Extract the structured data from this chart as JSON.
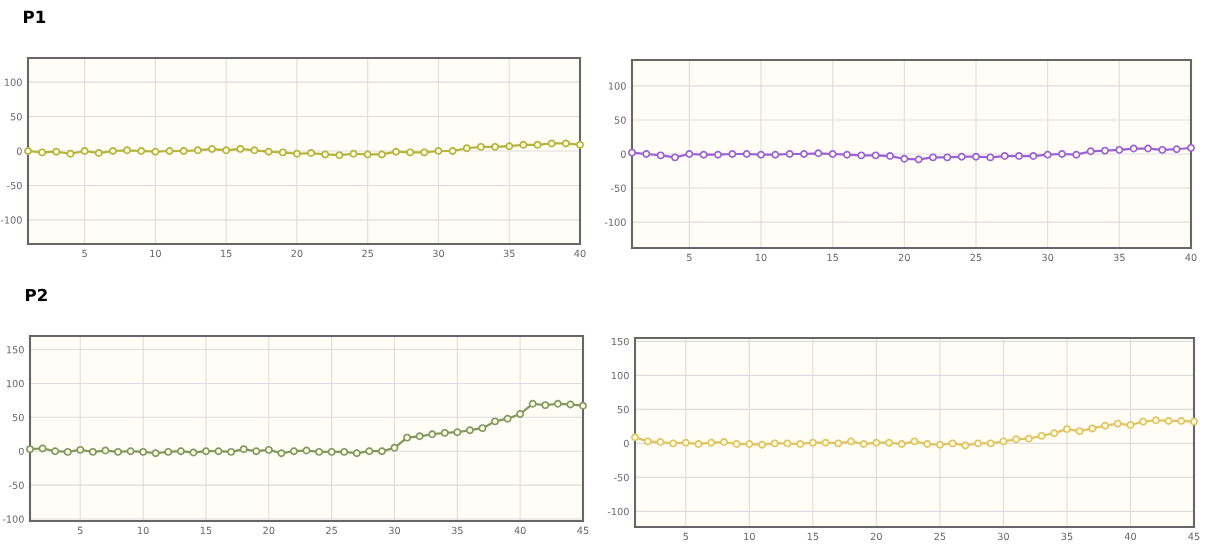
{
  "chart_data": [
    {
      "type": "line",
      "annotations": [
        "P1"
      ],
      "x": [
        1,
        2,
        3,
        4,
        5,
        6,
        7,
        8,
        9,
        10,
        11,
        12,
        13,
        14,
        15,
        16,
        17,
        18,
        19,
        20,
        21,
        22,
        23,
        24,
        25,
        26,
        27,
        28,
        29,
        30,
        31,
        32,
        33,
        34,
        35,
        36,
        37,
        38,
        39,
        40
      ],
      "series": [
        {
          "color": "#b5b33a",
          "values": [
            0,
            -2,
            -1,
            -4,
            0,
            -3,
            0,
            1,
            0,
            -1,
            0,
            0,
            1,
            3,
            1,
            3,
            1,
            -1,
            -2,
            -4,
            -3,
            -5,
            -6,
            -4,
            -5,
            -5,
            -1,
            -2,
            -2,
            0,
            0,
            4,
            6,
            6,
            7,
            9,
            9,
            11,
            11,
            9
          ]
        }
      ],
      "xlim": [
        1,
        40
      ],
      "xticks": [
        5,
        10,
        15,
        20,
        25,
        30,
        35,
        40
      ],
      "ylim": [
        -135,
        135
      ],
      "yticks": [
        -100,
        -50,
        0,
        50,
        100
      ],
      "grid": true,
      "marker": "circle",
      "line_style": "solid"
    },
    {
      "type": "line",
      "x": [
        1,
        2,
        3,
        4,
        5,
        6,
        7,
        8,
        9,
        10,
        11,
        12,
        13,
        14,
        15,
        16,
        17,
        18,
        19,
        20,
        21,
        22,
        23,
        24,
        25,
        26,
        27,
        28,
        29,
        30,
        31,
        32,
        33,
        34,
        35,
        36,
        37,
        38,
        39,
        40
      ],
      "series": [
        {
          "color": "#9a60d6",
          "values": [
            2,
            0,
            -2,
            -5,
            0,
            -1,
            -1,
            0,
            0,
            -1,
            -1,
            0,
            0,
            1,
            0,
            -1,
            -2,
            -2,
            -3,
            -7,
            -8,
            -5,
            -5,
            -4,
            -4,
            -5,
            -3,
            -3,
            -3,
            -1,
            0,
            -1,
            4,
            5,
            6,
            8,
            8,
            6,
            7,
            9
          ]
        }
      ],
      "xlim": [
        1,
        40
      ],
      "xticks": [
        5,
        10,
        15,
        20,
        25,
        30,
        35,
        40
      ],
      "ylim": [
        -138,
        138
      ],
      "yticks": [
        -100,
        -50,
        0,
        50,
        100
      ],
      "grid": true,
      "marker": "circle",
      "line_style": "solid"
    },
    {
      "type": "line",
      "annotations": [
        "P2"
      ],
      "x": [
        1,
        2,
        3,
        4,
        5,
        6,
        7,
        8,
        9,
        10,
        11,
        12,
        13,
        14,
        15,
        16,
        17,
        18,
        19,
        20,
        21,
        22,
        23,
        24,
        25,
        26,
        27,
        28,
        29,
        30,
        31,
        32,
        33,
        34,
        35,
        36,
        37,
        38,
        39,
        40,
        41,
        42,
        43,
        44,
        45
      ],
      "series": [
        {
          "color": "#7f9860",
          "values": [
            3,
            4,
            0,
            -1,
            2,
            -1,
            1,
            -1,
            0,
            -1,
            -3,
            -1,
            0,
            -2,
            0,
            0,
            -1,
            3,
            0,
            2,
            -3,
            0,
            1,
            -1,
            -1,
            -1,
            -3,
            0,
            0,
            5,
            20,
            22,
            25,
            27,
            28,
            31,
            34,
            44,
            48,
            55,
            70,
            68,
            70,
            69,
            67
          ]
        }
      ],
      "xlim": [
        1,
        45
      ],
      "xticks": [
        5,
        10,
        15,
        20,
        25,
        30,
        35,
        40,
        45
      ],
      "ylim": [
        -103,
        170
      ],
      "yticks": [
        -100,
        -50,
        0,
        50,
        100,
        150
      ],
      "grid": true,
      "marker": "circle",
      "line_style": "solid"
    },
    {
      "type": "line",
      "x": [
        1,
        2,
        3,
        4,
        5,
        6,
        7,
        8,
        9,
        10,
        11,
        12,
        13,
        14,
        15,
        16,
        17,
        18,
        19,
        20,
        21,
        22,
        23,
        24,
        25,
        26,
        27,
        28,
        29,
        30,
        31,
        32,
        33,
        34,
        35,
        36,
        37,
        38,
        39,
        40,
        41,
        42,
        43,
        44,
        45
      ],
      "series": [
        {
          "color": "#e0c460",
          "values": [
            9,
            3,
            2,
            0,
            1,
            -1,
            1,
            2,
            -1,
            -1,
            -2,
            0,
            0,
            -1,
            1,
            1,
            0,
            3,
            -1,
            1,
            1,
            -1,
            3,
            -1,
            -2,
            0,
            -3,
            0,
            0,
            3,
            6,
            7,
            11,
            15,
            21,
            18,
            22,
            26,
            29,
            27,
            32,
            34,
            33,
            33,
            32
          ]
        }
      ],
      "xlim": [
        1,
        45
      ],
      "xticks": [
        5,
        10,
        15,
        20,
        25,
        30,
        35,
        40,
        45
      ],
      "ylim": [
        -123,
        155
      ],
      "yticks": [
        -100,
        -50,
        0,
        50,
        100,
        150
      ],
      "grid": true,
      "marker": "circle",
      "line_style": "solid"
    }
  ]
}
